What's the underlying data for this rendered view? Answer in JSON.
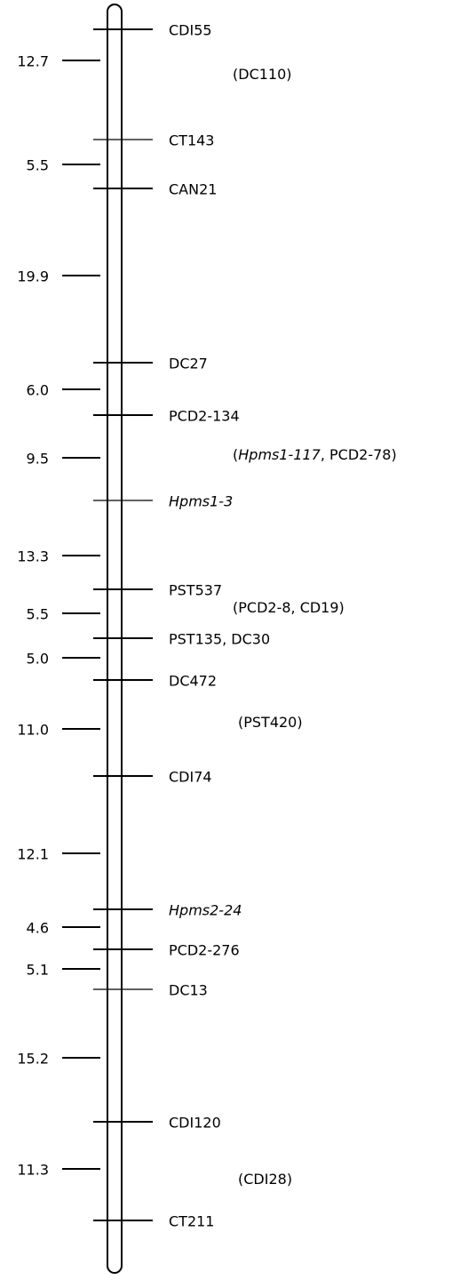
{
  "markers": [
    "CDI55",
    "CT143",
    "CAN21",
    "DC27",
    "PCD2-134",
    "Hpms1-3",
    "PST537",
    "PST135, DC30",
    "DC472",
    "CDI74",
    "Hpms2-24",
    "PCD2-276",
    "DC13",
    "CDI120",
    "CT211"
  ],
  "distances": [
    "12.7",
    "5.5",
    "19.9",
    "6.0",
    "9.5",
    "13.3",
    "5.5",
    "5.0",
    "11.0",
    "12.1",
    "4.6",
    "5.1",
    "15.2",
    "11.3"
  ],
  "unplaced": [
    [
      "(DC110)"
    ],
    [
      "(",
      "Hpms1-117",
      ", PCD2-78)"
    ],
    [
      "(PCD2-8, CD19)"
    ],
    [
      "(PST420)"
    ],
    [
      "(CDI28)"
    ]
  ]
}
